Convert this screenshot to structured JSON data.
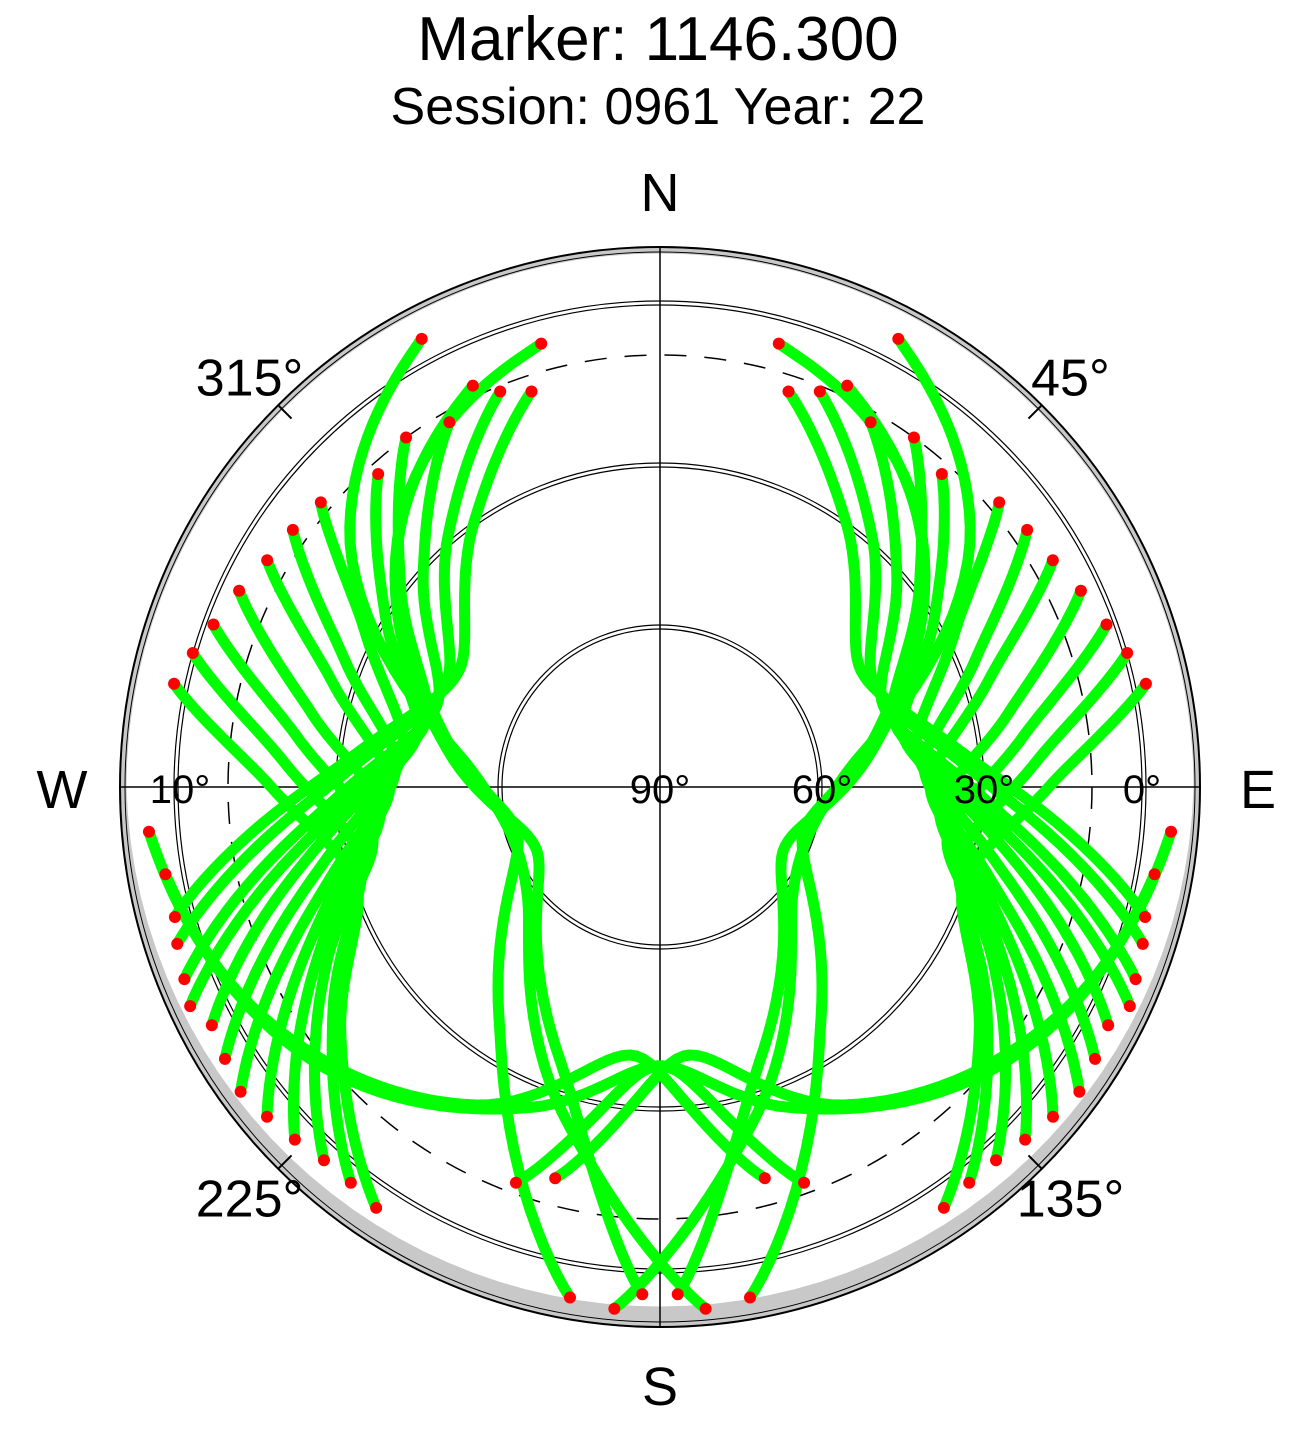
{
  "header": {
    "title": "Marker: 1146.300",
    "subtitle": "Session: 0961 Year: 22"
  },
  "chart_data": {
    "type": "scatter",
    "projection": "polar-skyplot",
    "title": "Marker: 1146.300",
    "subtitle": "Session: 0961 Year: 22",
    "direction_labels": {
      "north": "N",
      "east": "E",
      "south": "S",
      "west": "W"
    },
    "azimuth_labels": [
      {
        "az": 45,
        "text": "45°"
      },
      {
        "az": 135,
        "text": "135°"
      },
      {
        "az": 225,
        "text": "225°"
      },
      {
        "az": 315,
        "text": "315°"
      }
    ],
    "elevation_labels": [
      {
        "el": 90,
        "text": "90°"
      },
      {
        "el": 60,
        "text": "60°"
      },
      {
        "el": 30,
        "text": "30°"
      },
      {
        "el": 0,
        "text": "0°"
      },
      {
        "el": -10,
        "text": "10°"
      }
    ],
    "elevation_rings": [
      60,
      30,
      0
    ],
    "dashed_ring_elevation": 10,
    "radial_range": [
      -10,
      90
    ],
    "colors": {
      "track": "#00ff00",
      "endpoint": "#ff0000",
      "mask": "#c8c8c8"
    },
    "tracks_note_units": "azimuth/elevation in degrees",
    "tracks": [
      {
        "az": [
          18,
          35,
          60,
          85,
          105
        ],
        "el": [
          13,
          30,
          47,
          32,
          -3
        ]
      },
      {
        "az": [
          22,
          40,
          64,
          88,
          108
        ],
        "el": [
          11,
          29,
          46,
          31,
          -4
        ]
      },
      {
        "az": [
          30,
          48,
          70,
          92,
          112
        ],
        "el": [
          12,
          31,
          46,
          30,
          -5
        ]
      },
      {
        "az": [
          36,
          52,
          74,
          95,
          115
        ],
        "el": [
          10,
          29,
          45,
          29,
          -6
        ]
      },
      {
        "az": [
          42,
          58,
          78,
          98,
          118
        ],
        "el": [
          12,
          30,
          44,
          28,
          -4
        ]
      },
      {
        "az": [
          50,
          62,
          82,
          102,
          122
        ],
        "el": [
          8,
          28,
          42,
          27,
          -5
        ]
      },
      {
        "az": [
          55,
          68,
          86,
          106,
          126
        ],
        "el": [
          7,
          27,
          41,
          26,
          -6
        ]
      },
      {
        "az": [
          60,
          72,
          90,
          110,
          130
        ],
        "el": [
          6,
          26,
          40,
          24,
          -5
        ]
      },
      {
        "az": [
          65,
          78,
          95,
          114,
          134
        ],
        "el": [
          4,
          24,
          38,
          22,
          -4
        ]
      },
      {
        "az": [
          70,
          82,
          100,
          118,
          138
        ],
        "el": [
          2,
          22,
          36,
          20,
          -3
        ]
      },
      {
        "az": [
          74,
          86,
          104,
          124,
          142
        ],
        "el": [
          0,
          20,
          33,
          17,
          -3
        ]
      },
      {
        "az": [
          78,
          90,
          108,
          128,
          146
        ],
        "el": [
          -2,
          18,
          31,
          15,
          -4
        ]
      },
      {
        "az": [
          342,
          325,
          300,
          275,
          255
        ],
        "el": [
          13,
          30,
          47,
          32,
          -3
        ]
      },
      {
        "az": [
          338,
          320,
          296,
          272,
          252
        ],
        "el": [
          11,
          29,
          46,
          31,
          -4
        ]
      },
      {
        "az": [
          330,
          312,
          290,
          268,
          248
        ],
        "el": [
          12,
          31,
          46,
          30,
          -5
        ]
      },
      {
        "az": [
          324,
          308,
          286,
          265,
          245
        ],
        "el": [
          10,
          29,
          45,
          29,
          -6
        ]
      },
      {
        "az": [
          318,
          302,
          282,
          262,
          242
        ],
        "el": [
          12,
          30,
          44,
          28,
          -4
        ]
      },
      {
        "az": [
          310,
          298,
          278,
          258,
          238
        ],
        "el": [
          8,
          28,
          42,
          27,
          -5
        ]
      },
      {
        "az": [
          305,
          292,
          274,
          254,
          234
        ],
        "el": [
          7,
          27,
          41,
          26,
          -6
        ]
      },
      {
        "az": [
          300,
          288,
          270,
          250,
          230
        ],
        "el": [
          6,
          26,
          40,
          24,
          -5
        ]
      },
      {
        "az": [
          295,
          282,
          265,
          246,
          226
        ],
        "el": [
          4,
          24,
          38,
          22,
          -4
        ]
      },
      {
        "az": [
          290,
          278,
          260,
          242,
          222
        ],
        "el": [
          2,
          22,
          36,
          20,
          -3
        ]
      },
      {
        "az": [
          286,
          274,
          256,
          236,
          218
        ],
        "el": [
          0,
          20,
          33,
          17,
          -3
        ]
      },
      {
        "az": [
          282,
          270,
          252,
          232,
          214
        ],
        "el": [
          -2,
          18,
          31,
          15,
          -4
        ]
      },
      {
        "az": [
          25,
          45,
          75,
          110,
          145,
          170
        ],
        "el": [
          8,
          22,
          48,
          62,
          38,
          -6
        ]
      },
      {
        "az": [
          335,
          315,
          285,
          250,
          215,
          190
        ],
        "el": [
          8,
          22,
          48,
          62,
          38,
          -6
        ]
      },
      {
        "az": [
          15,
          40,
          80,
          120,
          160,
          178
        ],
        "el": [
          5,
          18,
          50,
          64,
          36,
          -4
        ]
      },
      {
        "az": [
          345,
          320,
          280,
          240,
          200,
          182
        ],
        "el": [
          5,
          18,
          50,
          64,
          36,
          -4
        ]
      },
      {
        "az": [
          28,
          50,
          85,
          130,
          165,
          185
        ],
        "el": [
          -4,
          15,
          55,
          58,
          25,
          -7
        ]
      },
      {
        "az": [
          332,
          310,
          275,
          230,
          195,
          175
        ],
        "el": [
          -4,
          15,
          55,
          58,
          25,
          -7
        ]
      },
      {
        "az": [
          95,
          120,
          150,
          175,
          195
        ],
        "el": [
          -5,
          5,
          22,
          40,
          15
        ]
      },
      {
        "az": [
          265,
          240,
          210,
          185,
          165
        ],
        "el": [
          -5,
          5,
          22,
          40,
          15
        ]
      },
      {
        "az": [
          100,
          128,
          158,
          182,
          200
        ],
        "el": [
          -3,
          8,
          26,
          38,
          12
        ]
      },
      {
        "az": [
          260,
          232,
          202,
          178,
          160
        ],
        "el": [
          -3,
          8,
          26,
          38,
          12
        ]
      }
    ]
  }
}
